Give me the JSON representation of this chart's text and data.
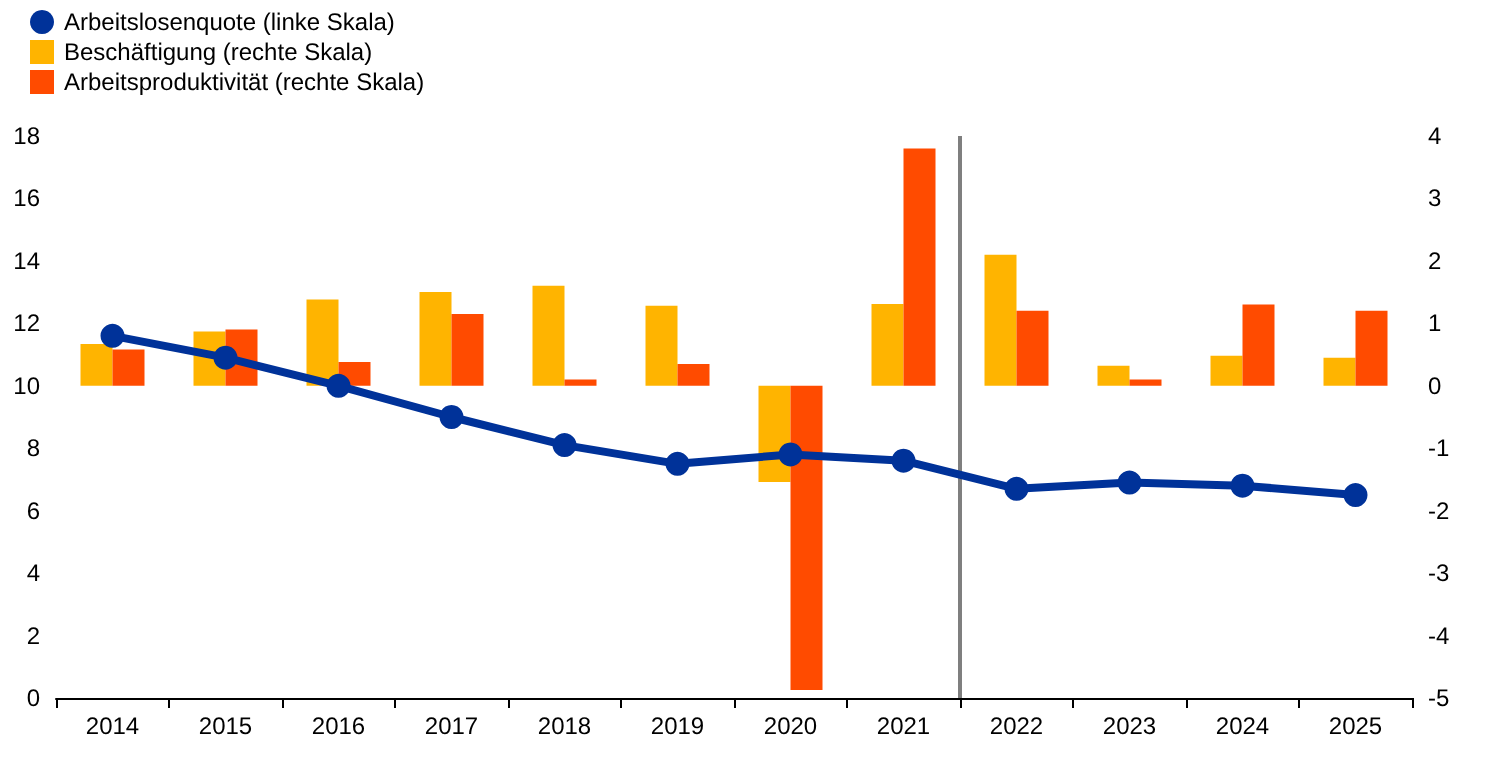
{
  "chart_data": {
    "type": "bar",
    "categories": [
      "2014",
      "2015",
      "2016",
      "2017",
      "2018",
      "2019",
      "2020",
      "2021",
      "2022",
      "2023",
      "2024",
      "2025"
    ],
    "series": [
      {
        "name": "Arbeitslosenquote (linke Skala)",
        "type": "line",
        "color": "#003299",
        "values": [
          11.6,
          10.9,
          10.0,
          9.0,
          8.1,
          7.5,
          7.8,
          7.6,
          6.7,
          6.9,
          6.8,
          6.5
        ]
      },
      {
        "name": "Beschäftigung (rechte Skala)",
        "axis": "y2",
        "color": "#ffb400",
        "values": [
          0.67,
          0.87,
          1.38,
          1.5,
          1.6,
          1.28,
          -1.54,
          1.31,
          2.1,
          0.32,
          0.48,
          0.45
        ]
      },
      {
        "name": "Arbeitsproduktivität (rechte Skala)",
        "axis": "y2",
        "color": "#ff4b00",
        "values": [
          0.58,
          0.9,
          0.38,
          1.15,
          0.1,
          0.35,
          -4.87,
          3.8,
          1.2,
          0.1,
          1.3,
          1.2
        ]
      }
    ],
    "ylim": [
      0,
      18
    ],
    "yticks": [
      0,
      2,
      4,
      6,
      8,
      10,
      12,
      14,
      16,
      18
    ],
    "y2lim": [
      -5,
      4
    ],
    "y2ticks": [
      -5,
      -4,
      -3,
      -2,
      -1,
      0,
      1,
      2,
      3,
      4
    ],
    "marker": "circle",
    "legend": "top left",
    "grid": false
  }
}
